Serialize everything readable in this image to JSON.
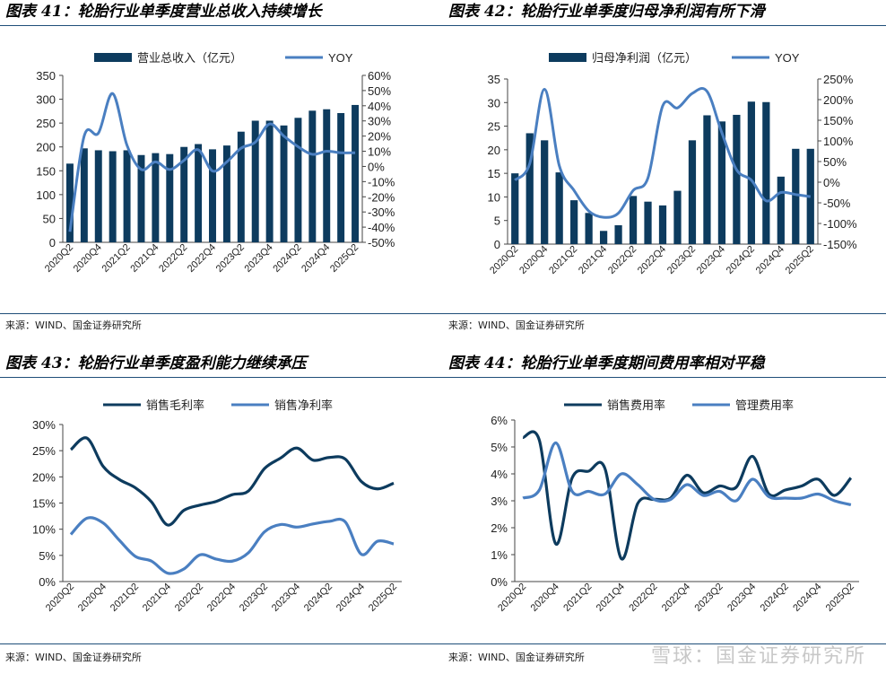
{
  "colors": {
    "navy": "#0d3b5e",
    "steel": "#4a7fc1",
    "rule": "#1f4e79"
  },
  "watermark": "雪球：国金证券研究所",
  "panels": [
    {
      "title": "图表 41：轮胎行业单季度营业总收入持续增长",
      "source": "来源：WIND、国金证券研究所"
    },
    {
      "title": "图表 42：轮胎行业单季度归母净利润有所下滑",
      "source": "来源：WIND、国金证券研究所"
    },
    {
      "title": "图表 43：轮胎行业单季度盈利能力继续承压",
      "source": "来源：WIND、国金证券研究所"
    },
    {
      "title": "图表 44：轮胎行业单季度期间费用率相对平稳",
      "source": "来源：WIND、国金证券研究所"
    }
  ],
  "chart_data": [
    {
      "type": "bar+line",
      "title": "图表 41：轮胎行业单季度营业总收入持续增长",
      "categories": [
        "2020Q2",
        "2020Q3",
        "2020Q4",
        "2021Q1",
        "2021Q2",
        "2021Q3",
        "2021Q4",
        "2022Q1",
        "2022Q2",
        "2022Q3",
        "2022Q4",
        "2023Q1",
        "2023Q2",
        "2023Q3",
        "2023Q4",
        "2024Q1",
        "2024Q2",
        "2024Q3",
        "2024Q4",
        "2025Q1",
        "2025Q2"
      ],
      "xtick_labels": [
        "2020Q2",
        "2020Q4",
        "2021Q2",
        "2021Q4",
        "2022Q2",
        "2022Q4",
        "2023Q2",
        "2023Q4",
        "2024Q2",
        "2024Q4",
        "2025Q2"
      ],
      "series": [
        {
          "name": "营业总收入（亿元）",
          "type": "bar",
          "axis": "left",
          "values": [
            165,
            197,
            193,
            191,
            193,
            183,
            187,
            185,
            200,
            206,
            195,
            203,
            232,
            255,
            255,
            245,
            261,
            276,
            279,
            271,
            288
          ]
        },
        {
          "name": "YOY",
          "type": "line",
          "axis": "right",
          "values": [
            -43,
            20,
            22,
            48,
            14,
            -2,
            3,
            -2,
            4,
            11,
            -3,
            3,
            12,
            16,
            28,
            20,
            13,
            8,
            10,
            9,
            9
          ]
        }
      ],
      "left_axis": {
        "min": 0,
        "max": 350,
        "step": 50,
        "labels": [
          "0",
          "50",
          "100",
          "150",
          "200",
          "250",
          "300",
          "350"
        ]
      },
      "right_axis": {
        "min": -50,
        "max": 60,
        "step": 10,
        "labels": [
          "-50%",
          "-40%",
          "-30%",
          "-20%",
          "-10%",
          "0%",
          "10%",
          "20%",
          "30%",
          "40%",
          "50%",
          "60%"
        ]
      },
      "legend": [
        "营业总收入（亿元）",
        "YOY"
      ]
    },
    {
      "type": "bar+line",
      "title": "图表 42：轮胎行业单季度归母净利润有所下滑",
      "categories": [
        "2020Q2",
        "2020Q3",
        "2020Q4",
        "2021Q1",
        "2021Q2",
        "2021Q3",
        "2021Q4",
        "2022Q1",
        "2022Q2",
        "2022Q3",
        "2022Q4",
        "2023Q1",
        "2023Q2",
        "2023Q3",
        "2023Q4",
        "2024Q1",
        "2024Q2",
        "2024Q3",
        "2024Q4",
        "2025Q1",
        "2025Q2"
      ],
      "xtick_labels": [
        "2020Q2",
        "2020Q4",
        "2021Q2",
        "2021Q4",
        "2022Q2",
        "2022Q4",
        "2023Q2",
        "2023Q4",
        "2024Q2",
        "2024Q4",
        "2025Q2"
      ],
      "series": [
        {
          "name": "归母净利润（亿元）",
          "type": "bar",
          "axis": "left",
          "values": [
            15,
            23.5,
            22,
            15.2,
            9.3,
            6.6,
            2.8,
            4,
            10.2,
            9,
            8.2,
            11.3,
            22,
            27.3,
            26,
            27.4,
            30.2,
            30.1,
            14.3,
            20.2,
            20.2
          ]
        },
        {
          "name": "YOY",
          "type": "line",
          "axis": "right",
          "values": [
            5,
            45,
            225,
            40,
            -20,
            -70,
            -85,
            -75,
            -20,
            10,
            185,
            180,
            215,
            220,
            120,
            30,
            5,
            -45,
            -25,
            -30,
            -35
          ]
        }
      ],
      "left_axis": {
        "min": 0,
        "max": 35,
        "step": 5,
        "labels": [
          "0",
          "5",
          "10",
          "15",
          "20",
          "25",
          "30",
          "35"
        ]
      },
      "right_axis": {
        "min": -150,
        "max": 250,
        "step": 50,
        "labels": [
          "-150%",
          "-100%",
          "-50%",
          "0%",
          "50%",
          "100%",
          "150%",
          "200%",
          "250%"
        ]
      },
      "legend": [
        "归母净利润（亿元）",
        "YOY"
      ]
    },
    {
      "type": "line",
      "title": "图表 43：轮胎行业单季度盈利能力继续承压",
      "categories": [
        "2020Q2",
        "2020Q3",
        "2020Q4",
        "2021Q1",
        "2021Q2",
        "2021Q3",
        "2021Q4",
        "2022Q1",
        "2022Q2",
        "2022Q3",
        "2022Q4",
        "2023Q1",
        "2023Q2",
        "2023Q3",
        "2023Q4",
        "2024Q1",
        "2024Q2",
        "2024Q3",
        "2024Q4",
        "2025Q1",
        "2025Q2"
      ],
      "xtick_labels": [
        "2020Q2",
        "2020Q4",
        "2021Q2",
        "2021Q4",
        "2022Q2",
        "2022Q4",
        "2023Q2",
        "2023Q4",
        "2024Q2",
        "2024Q4",
        "2025Q2"
      ],
      "series": [
        {
          "name": "销售毛利率",
          "values": [
            25.2,
            27.4,
            22,
            19.5,
            17.9,
            15.2,
            10.8,
            13.6,
            14.6,
            15.3,
            16.6,
            17.3,
            21.6,
            23.6,
            25.5,
            23.2,
            23.7,
            23.4,
            19.1,
            17.7,
            18.8
          ]
        },
        {
          "name": "销售净利率",
          "values": [
            9,
            12.1,
            11.2,
            7.9,
            4.8,
            3.9,
            1.6,
            2.4,
            5.1,
            4.3,
            3.9,
            5.5,
            9.5,
            10.9,
            10.4,
            11,
            11.5,
            11.4,
            5.2,
            7.7,
            7.2
          ]
        }
      ],
      "y_axis": {
        "min": 0,
        "max": 30,
        "step": 5,
        "labels": [
          "0%",
          "5%",
          "10%",
          "15%",
          "20%",
          "25%",
          "30%"
        ]
      },
      "legend": [
        "销售毛利率",
        "销售净利率"
      ]
    },
    {
      "type": "line",
      "title": "图表 44：轮胎行业单季度期间费用率相对平稳",
      "categories": [
        "2020Q2",
        "2020Q3",
        "2020Q4",
        "2021Q1",
        "2021Q2",
        "2021Q3",
        "2021Q4",
        "2022Q1",
        "2022Q2",
        "2022Q3",
        "2022Q4",
        "2023Q1",
        "2023Q2",
        "2023Q3",
        "2023Q4",
        "2024Q1",
        "2024Q2",
        "2024Q3",
        "2024Q4",
        "2025Q1",
        "2025Q2"
      ],
      "xtick_labels": [
        "2020Q2",
        "2020Q4",
        "2021Q2",
        "2021Q4",
        "2022Q2",
        "2022Q4",
        "2023Q2",
        "2023Q4",
        "2024Q2",
        "2024Q4",
        "2025Q2"
      ],
      "series": [
        {
          "name": "销售费用率",
          "values": [
            5.35,
            5.25,
            1.4,
            3.85,
            4.1,
            4.2,
            0.85,
            2.9,
            3.05,
            3.1,
            3.95,
            3.3,
            3.55,
            3.5,
            4.65,
            3.25,
            3.4,
            3.55,
            3.8,
            3.2,
            3.85
          ]
        },
        {
          "name": "管理费用率",
          "values": [
            3.1,
            3.4,
            5.15,
            3.35,
            3.35,
            3.25,
            4.0,
            3.6,
            3.05,
            3.05,
            3.6,
            3.2,
            3.35,
            3.0,
            3.8,
            3.15,
            3.1,
            3.1,
            3.25,
            3.0,
            2.85
          ]
        }
      ],
      "y_axis": {
        "min": 0,
        "max": 6,
        "step": 1,
        "labels": [
          "0%",
          "1%",
          "2%",
          "3%",
          "4%",
          "5%",
          "6%"
        ]
      },
      "legend": [
        "销售费用率",
        "管理费用率"
      ]
    }
  ]
}
